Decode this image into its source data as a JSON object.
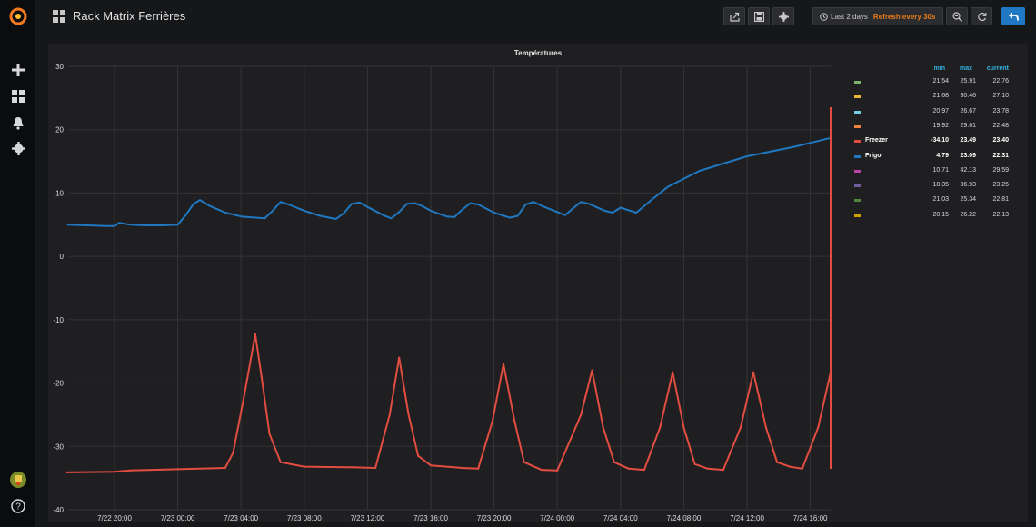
{
  "sidebar": {
    "items": [
      {
        "icon": "grafana-logo-icon"
      },
      {
        "icon": "plus-icon"
      },
      {
        "icon": "dashboards-icon"
      },
      {
        "icon": "bell-icon"
      },
      {
        "icon": "gear-icon"
      },
      {
        "icon": "avatar-icon"
      },
      {
        "icon": "help-icon"
      }
    ]
  },
  "header": {
    "title": "Rack Matrix Ferrières",
    "time_range": "Last 2 days",
    "refresh": "Refresh every 30s"
  },
  "colors": {
    "accent": "#eb7b18",
    "link": "#33b5e5",
    "freezer": "#e24d42",
    "frigo": "#1f78c1"
  },
  "chart_data": {
    "type": "line",
    "title": "Températures",
    "ylim": [
      -40,
      30
    ],
    "yticks": [
      "30",
      "20",
      "10",
      "0",
      "-10",
      "-20",
      "-30",
      "-40"
    ],
    "xticks": [
      "7/22 20:00",
      "7/23 00:00",
      "7/23 04:00",
      "7/23 08:00",
      "7/23 12:00",
      "7/23 16:00",
      "7/23 20:00",
      "7/24 00:00",
      "7/24 04:00",
      "7/24 08:00",
      "7/24 12:00",
      "7/24 16:00"
    ],
    "x_unit": "hours after 7/22 20:00",
    "grid": true,
    "series": [
      {
        "name": "Frigo",
        "color": "#1f78c1",
        "points": [
          [
            -3,
            5
          ],
          [
            -0.5,
            4.8
          ],
          [
            0,
            4.8
          ],
          [
            0.3,
            5.3
          ],
          [
            1,
            5.0
          ],
          [
            2,
            4.9
          ],
          [
            3,
            4.9
          ],
          [
            4,
            5.0
          ],
          [
            4.5,
            6.5
          ],
          [
            5,
            8.3
          ],
          [
            5.4,
            8.9
          ],
          [
            6,
            8.0
          ],
          [
            7,
            6.9
          ],
          [
            8,
            6.3
          ],
          [
            9,
            6.1
          ],
          [
            9.5,
            6.0
          ],
          [
            10,
            7.2
          ],
          [
            10.5,
            8.6
          ],
          [
            11,
            8.2
          ],
          [
            12,
            7.2
          ],
          [
            13,
            6.4
          ],
          [
            14,
            5.9
          ],
          [
            14.5,
            6.8
          ],
          [
            15,
            8.3
          ],
          [
            15.5,
            8.5
          ],
          [
            16,
            7.8
          ],
          [
            17,
            6.5
          ],
          [
            17.5,
            6.0
          ],
          [
            18,
            7.0
          ],
          [
            18.5,
            8.3
          ],
          [
            19,
            8.4
          ],
          [
            19.5,
            7.9
          ],
          [
            20,
            7.2
          ],
          [
            21,
            6.3
          ],
          [
            21.5,
            6.2
          ],
          [
            22,
            7.4
          ],
          [
            22.5,
            8.4
          ],
          [
            23,
            8.2
          ],
          [
            24,
            6.9
          ],
          [
            25,
            6.1
          ],
          [
            25.5,
            6.4
          ],
          [
            26,
            8.2
          ],
          [
            26.5,
            8.6
          ],
          [
            27,
            8.0
          ],
          [
            28,
            7.0
          ],
          [
            28.5,
            6.5
          ],
          [
            29,
            7.6
          ],
          [
            29.5,
            8.6
          ],
          [
            30,
            8.3
          ],
          [
            31,
            7.2
          ],
          [
            31.5,
            6.9
          ],
          [
            32,
            7.7
          ],
          [
            32.5,
            7.3
          ],
          [
            33,
            6.9
          ],
          [
            34,
            9
          ],
          [
            35,
            11
          ],
          [
            37,
            13.5
          ],
          [
            40,
            15.8
          ],
          [
            43,
            17.3
          ],
          [
            46,
            18.7
          ],
          [
            50,
            20.3
          ],
          [
            54,
            21.5
          ],
          [
            58,
            22.2
          ],
          [
            62,
            22.6
          ],
          [
            66,
            22.9
          ],
          [
            70,
            23.1
          ],
          [
            70.5,
            22.9
          ],
          [
            71,
            22.4
          ],
          [
            72,
            22.3
          ]
        ]
      },
      {
        "name": "Freezer",
        "color": "#e24d42",
        "points": [
          [
            -3,
            -34.1
          ],
          [
            0,
            -34.0
          ],
          [
            0.5,
            -33.9
          ],
          [
            1,
            -33.8
          ],
          [
            4,
            -33.6
          ],
          [
            7,
            -33.4
          ],
          [
            7.5,
            -31
          ],
          [
            8.2,
            -22
          ],
          [
            8.9,
            -12.3
          ],
          [
            9.3,
            -19
          ],
          [
            9.8,
            -28
          ],
          [
            10.5,
            -32.5
          ],
          [
            12,
            -33.2
          ],
          [
            15,
            -33.3
          ],
          [
            16.5,
            -33.4
          ],
          [
            17.4,
            -25
          ],
          [
            18,
            -16
          ],
          [
            18.6,
            -25
          ],
          [
            19.2,
            -31.5
          ],
          [
            20,
            -33
          ],
          [
            22,
            -33.4
          ],
          [
            23,
            -33.5
          ],
          [
            23.9,
            -26
          ],
          [
            24.6,
            -17
          ],
          [
            25.3,
            -26
          ],
          [
            25.9,
            -32.5
          ],
          [
            27,
            -33.7
          ],
          [
            28,
            -33.8
          ],
          [
            29.5,
            -25
          ],
          [
            30.2,
            -18
          ],
          [
            30.9,
            -27
          ],
          [
            31.6,
            -32.5
          ],
          [
            32.5,
            -33.5
          ],
          [
            33.5,
            -33.7
          ],
          [
            34.5,
            -27
          ],
          [
            35.3,
            -18.3
          ],
          [
            36,
            -27
          ],
          [
            36.7,
            -32.8
          ],
          [
            37.5,
            -33.5
          ],
          [
            38.5,
            -33.7
          ],
          [
            39.6,
            -27
          ],
          [
            40.4,
            -18.3
          ],
          [
            41.2,
            -27
          ],
          [
            41.9,
            -32.5
          ],
          [
            42.7,
            -33.2
          ],
          [
            43.5,
            -33.5
          ],
          [
            44.5,
            -27
          ],
          [
            45.3,
            -18.3
          ],
          [
            46.1,
            -27
          ],
          [
            46.8,
            -32.6
          ],
          [
            48,
            -33.3
          ],
          [
            49.5,
            -33.4
          ],
          [
            50,
            -25
          ],
          [
            51.5,
            -10
          ],
          [
            53,
            -1
          ],
          [
            53.7,
            -0.3
          ],
          [
            55,
            -0.1
          ],
          [
            58,
            -0.1
          ],
          [
            60,
            0
          ],
          [
            62.5,
            0.3
          ],
          [
            64,
            3
          ],
          [
            66,
            9
          ],
          [
            68,
            14
          ],
          [
            70,
            16.8
          ],
          [
            74,
            19.6
          ],
          [
            78,
            21.4
          ],
          [
            81,
            22.3
          ],
          [
            85,
            22.9
          ],
          [
            90,
            23.2
          ],
          [
            95,
            23.3
          ],
          [
            100,
            23.4
          ],
          [
            120,
            23.4
          ]
        ]
      }
    ],
    "legend": {
      "placement": "right",
      "headers": [
        "min",
        "max",
        "current"
      ],
      "rows": [
        {
          "name": "",
          "color": "#7eb26d",
          "min": "21.54",
          "max": "25.91",
          "current": "22.76"
        },
        {
          "name": "",
          "color": "#eab839",
          "min": "21.68",
          "max": "30.46",
          "current": "27.10"
        },
        {
          "name": "",
          "color": "#6ed0e0",
          "min": "20.97",
          "max": "26.67",
          "current": "23.78"
        },
        {
          "name": "",
          "color": "#ef843c",
          "min": "19.92",
          "max": "29.61",
          "current": "22.48"
        },
        {
          "name": "Freezer",
          "color": "#e24d42",
          "min": "-34.10",
          "max": "23.49",
          "current": "23.40"
        },
        {
          "name": "Frigo",
          "color": "#1f78c1",
          "min": "4.79",
          "max": "23.09",
          "current": "22.31"
        },
        {
          "name": "",
          "color": "#ba43a9",
          "min": "10.71",
          "max": "42.13",
          "current": "29.59"
        },
        {
          "name": "",
          "color": "#705da0",
          "min": "18.35",
          "max": "36.93",
          "current": "23.25"
        },
        {
          "name": "",
          "color": "#508642",
          "min": "21.03",
          "max": "25.34",
          "current": "22.81"
        },
        {
          "name": "",
          "color": "#cca300",
          "min": "20.15",
          "max": "26.22",
          "current": "22.13"
        }
      ]
    }
  }
}
